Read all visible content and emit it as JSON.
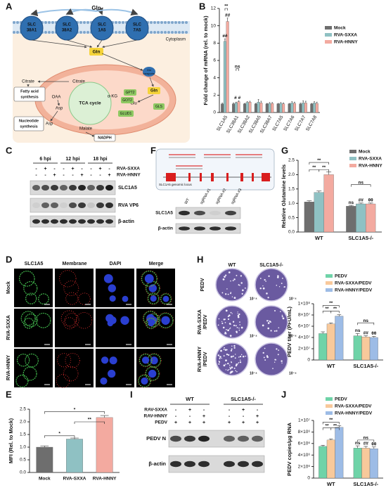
{
  "chart_data": [
    {
      "panel": "B",
      "type": "bar",
      "ylabel": "Fold change of mRNA (rel. to mock)",
      "categories": [
        "SLC1A5",
        "SLC38A1",
        "SLC38A2",
        "SLC38A5",
        "SLC38A7",
        "SLC7A5",
        "SLC7A6",
        "SLC7A7",
        "SLC7A8"
      ],
      "series": [
        {
          "name": "Mock",
          "color": "#6e6e6e",
          "values": [
            1,
            1,
            1,
            1,
            1,
            1,
            1,
            1,
            1
          ],
          "errors": [
            0.08,
            0.1,
            0.05,
            0.05,
            0.05,
            0.05,
            0.05,
            0.08,
            0.05
          ]
        },
        {
          "name": "RVA-SXXA",
          "color": "#8fc1c3",
          "values": [
            8.2,
            1.1,
            1.15,
            1.2,
            1.05,
            1.05,
            1.1,
            1.1,
            1.1
          ],
          "errors": [
            0.3,
            0.1,
            0.1,
            0.3,
            0.1,
            0.1,
            0.15,
            0.25,
            0.15
          ]
        },
        {
          "name": "RVA-HNNY",
          "color": "#f3aaa0",
          "values": [
            10.5,
            1.25,
            1.2,
            1.1,
            1.05,
            1.0,
            1.05,
            1.1,
            1.05
          ],
          "errors": [
            0.4,
            0.1,
            0.1,
            0.2,
            0.1,
            0.1,
            0.15,
            0.2,
            0.15
          ]
        }
      ],
      "ylim": [
        0,
        12
      ],
      "yticks": [
        0,
        2,
        4,
        6,
        8,
        10,
        12
      ],
      "annotations": [
        "##",
        "##",
        "**",
        "ns",
        "# #"
      ]
    },
    {
      "panel": "E",
      "type": "bar",
      "ylabel": "MFI (Rel. to Mock)",
      "categories": [
        "Mock",
        "RVA-SXXA",
        "RVA-HNNY"
      ],
      "values": [
        1.0,
        1.32,
        2.17
      ],
      "errors": [
        0.05,
        0.04,
        0.08
      ],
      "colors": [
        "#6e6e6e",
        "#8fc1c3",
        "#f3aaa0"
      ],
      "ylim": [
        0,
        2.5
      ],
      "yticks": [
        {
          "value": 0,
          "label": "0.0"
        },
        {
          "value": 0.5,
          "label": "0.5"
        },
        {
          "value": 1,
          "label": "1.0"
        },
        {
          "value": 1.5,
          "label": "1.5"
        },
        {
          "value": 2,
          "label": "2.0"
        },
        {
          "value": 2.5,
          "label": "2.5"
        }
      ],
      "annotations": [
        "*",
        "**",
        "*"
      ]
    },
    {
      "panel": "G",
      "type": "bar",
      "ylabel": "Relative Glutamine levels",
      "categories": [
        "WT",
        "SLC1A5-/-"
      ],
      "series": [
        {
          "name": "Mock",
          "color": "#6e6e6e",
          "values": [
            1.05,
            0.9
          ],
          "errors": [
            0.04,
            0.03
          ]
        },
        {
          "name": "RVA-SXXA",
          "color": "#8fc1c3",
          "values": [
            1.38,
            0.98
          ],
          "errors": [
            0.05,
            0.03
          ]
        },
        {
          "name": "RVA-HNNY",
          "color": "#f3aaa0",
          "values": [
            2.0,
            0.98
          ],
          "errors": [
            0.1,
            0.03
          ]
        }
      ],
      "ylim": [
        0,
        2.5
      ],
      "yticks": [
        {
          "value": 0,
          "label": "0.0"
        },
        {
          "value": 0.5,
          "label": "0.5"
        },
        {
          "value": 1,
          "label": "1.0"
        },
        {
          "value": 1.5,
          "label": "1.5"
        },
        {
          "value": 2,
          "label": "2.0"
        },
        {
          "value": 2.5,
          "label": "2.5"
        }
      ],
      "annotations": [
        "**",
        "**",
        "**",
        "ns",
        "ns",
        "##",
        "θθ"
      ]
    },
    {
      "type": "bar",
      "ylabel": "PEDV titer (PFU/mL)",
      "categories": [
        "WT",
        "SLC1A5-/-"
      ],
      "series": [
        {
          "name": "PEDV",
          "color": "#6fd3a8",
          "values": [
            47000000,
            43000000
          ],
          "errors": [
            3000000,
            4000000
          ]
        },
        {
          "name": "RVA-SXXA/PEDV",
          "color": "#f8c99b",
          "values": [
            64000000,
            41000000
          ],
          "errors": [
            2000000,
            2000000
          ]
        },
        {
          "name": "RVA-HNNY/PEDV",
          "color": "#9dbce6",
          "values": [
            78000000,
            40000000
          ],
          "errors": [
            2500000,
            2000000
          ]
        }
      ],
      "ylim": [
        0,
        100000000
      ],
      "yticks": [
        0,
        {
          "value": 20000000,
          "label": "2×10⁷"
        },
        {
          "value": 40000000,
          "label": "4×10⁷"
        },
        {
          "value": 60000000,
          "label": "6×10⁷"
        },
        {
          "value": 80000000,
          "label": "8×10⁷"
        },
        {
          "value": 100000000,
          "label": "1×10⁸"
        }
      ],
      "annotations": [
        "**",
        "**",
        "**",
        "ns",
        "ns",
        "##",
        "θθ"
      ]
    },
    {
      "panel": "J",
      "type": "bar",
      "ylabel": "PEDV copies/μg RNA",
      "categories": [
        "WT",
        "SLC1A5-/-"
      ],
      "series": [
        {
          "name": "PEDV",
          "color": "#6fd3a8",
          "values": [
            5500000,
            5200000
          ],
          "errors": [
            200000,
            400000
          ]
        },
        {
          "name": "RVA-SXXA/PEDV",
          "color": "#f8c99b",
          "values": [
            6600000,
            5200000
          ],
          "errors": [
            200000,
            300000
          ]
        },
        {
          "name": "RVA-HNNY/PEDV",
          "color": "#9dbce6",
          "values": [
            8800000,
            5100000
          ],
          "errors": [
            300000,
            300000
          ]
        }
      ],
      "ylim": [
        0,
        10000000
      ],
      "yticks": [
        0,
        {
          "value": 2000000,
          "label": "2×10⁶"
        },
        {
          "value": 4000000,
          "label": "4×10⁶"
        },
        {
          "value": 6000000,
          "label": "6×10⁶"
        },
        {
          "value": 8000000,
          "label": "8×10⁶"
        },
        {
          "value": 10000000,
          "label": "1×10⁷"
        }
      ],
      "annotations": [
        "**",
        "**",
        "**",
        "ns",
        "ns",
        "##",
        "θθ"
      ]
    }
  ],
  "panel_A": {
    "letter": "A",
    "gln_top": "Gln",
    "transporters": [
      [
        "SLC",
        "38A1"
      ],
      [
        "SLC",
        "38A2"
      ],
      [
        "SLC",
        "1A5"
      ],
      [
        "SLC",
        "7A5"
      ]
    ],
    "cytoplasm": "Cytoplasm",
    "gln_cyto": "Gln",
    "citrate_cyto": "Citrate",
    "citrate_mito": "Citrate",
    "fatty_acid": [
      "Fatty acid",
      "synthesis"
    ],
    "oaa": "OAA",
    "asp_mito": "Asp",
    "asp_cyto": "Asp",
    "nucleotide": [
      "Nucleotide",
      "synthesis"
    ],
    "tca": "TCA cycle",
    "akg": "α-KG",
    "malate": "Malate",
    "nadph": "NADPH",
    "gln_mito": "Gln",
    "glu": "Glu",
    "gpt2": "GPT2",
    "got2": "GOT2",
    "glud1": "GLUD1",
    "gls": "GLS",
    "gln_transporter": [
      "Gln",
      "transporter"
    ]
  },
  "panel_C": {
    "letter": "C",
    "timepoints": [
      "6 hpi",
      "12 hpi",
      "18 hpi"
    ],
    "treatments": [
      "RVA-SXXA",
      "RVA-HNNY"
    ],
    "signs": [
      [
        "-",
        "+",
        "-",
        "-",
        "+",
        "-",
        "-",
        "+",
        "-"
      ],
      [
        "-",
        "-",
        "+",
        "-",
        "-",
        "+",
        "-",
        "-",
        "+"
      ]
    ],
    "proteins": [
      "SLC1A5",
      "RVA VP6",
      "β-actin"
    ]
  },
  "panel_D": {
    "letter": "D",
    "columns": [
      "SLC1A5",
      "Membrane",
      "DAPI",
      "Merge"
    ],
    "rows": [
      "Mock",
      "RVA-SXXA",
      "RVA-HNNY"
    ]
  },
  "panel_F": {
    "letter": "F",
    "locus": "SLC1A5 genomic locus",
    "lanes": [
      "WT",
      "sgRNA #1",
      "sgRNA #2",
      "sgRNA #3"
    ],
    "proteins": [
      "SLC1A5",
      "β-actin"
    ]
  },
  "panel_H": {
    "letter": "H",
    "columns": [
      "WT",
      "SLC1A5-/-"
    ],
    "rows": [
      [
        "PEDV"
      ],
      [
        "RVA-SXXA",
        "/PEDV"
      ],
      [
        "RVA-HNNY",
        "/PEDV"
      ]
    ],
    "dilutions": [
      "10⁻⁴",
      "10⁻⁴",
      "10⁻⁴",
      "10⁻⁴",
      "10⁻⁴",
      "10⁻⁴"
    ]
  },
  "panel_I": {
    "letter": "I",
    "groups": [
      "WT",
      "SLC1A5-/-"
    ],
    "treatments": [
      "RAV-SXXA",
      "RAV-HNNY",
      "PEDV"
    ],
    "signs": [
      [
        "-",
        "+",
        "-",
        "-",
        "+",
        "-"
      ],
      [
        "-",
        "-",
        "+",
        "-",
        "-",
        "+"
      ],
      [
        "+",
        "+",
        "+",
        "+",
        "+",
        "+"
      ]
    ],
    "proteins": [
      "PEDV N",
      "β-actin"
    ]
  }
}
